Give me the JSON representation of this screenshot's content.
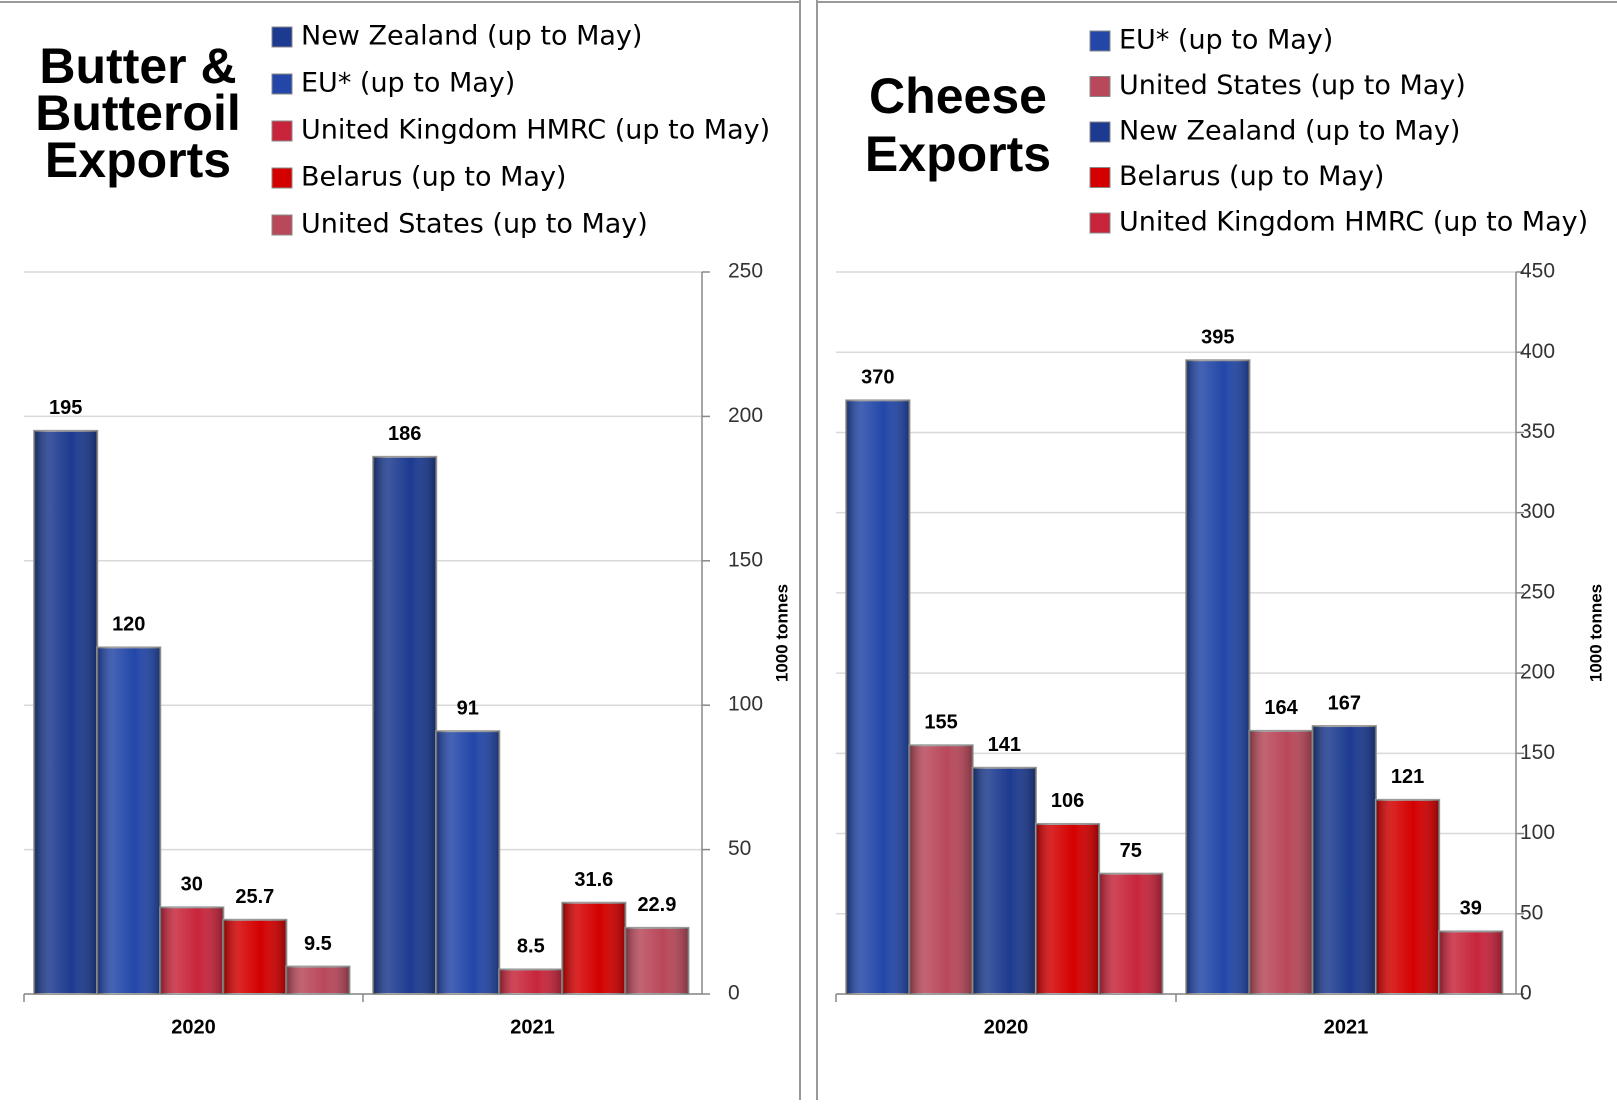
{
  "chart_data": [
    {
      "type": "bar",
      "title": [
        "Butter &",
        "Butteroil",
        "Exports"
      ],
      "y_label": "1000 tonnes",
      "categories": [
        "2020",
        "2021"
      ],
      "series": [
        {
          "name": "New Zealand (up to May)",
          "color": "#1c3a8f",
          "values": [
            195,
            186
          ]
        },
        {
          "name": "EU* (up to May)",
          "color": "#2347a8",
          "values": [
            120,
            91
          ]
        },
        {
          "name": "United Kingdom HMRC (up to May)",
          "color": "#c8253c",
          "values": [
            30,
            8.5
          ]
        },
        {
          "name": "Belarus (up to May)",
          "color": "#d40000",
          "values": [
            25.7,
            31.6
          ]
        },
        {
          "name": "United States (up to May)",
          "color": "#b8485a",
          "values": [
            9.5,
            22.9
          ]
        }
      ],
      "ylim": [
        0,
        250
      ],
      "yticks": [
        0,
        50,
        100,
        150,
        200,
        250
      ],
      "grid": true
    },
    {
      "type": "bar",
      "title": [
        "Cheese",
        "Exports"
      ],
      "y_label": "1000 tonnes",
      "categories": [
        "2020",
        "2021"
      ],
      "series": [
        {
          "name": "EU* (up to May)",
          "color": "#2347a8",
          "values": [
            370,
            395
          ]
        },
        {
          "name": "United States (up to May)",
          "color": "#b8485a",
          "values": [
            155,
            164
          ]
        },
        {
          "name": "New Zealand (up to May)",
          "color": "#1c3a8f",
          "values": [
            141,
            167
          ]
        },
        {
          "name": "Belarus (up to May)",
          "color": "#d40000",
          "values": [
            106,
            121
          ]
        },
        {
          "name": "United Kingdom HMRC (up to May)",
          "color": "#c8253c",
          "values": [
            75,
            39
          ]
        }
      ],
      "ylim": [
        0,
        450
      ],
      "yticks": [
        0,
        50,
        100,
        150,
        200,
        250,
        300,
        350,
        400,
        450
      ],
      "grid": true
    }
  ]
}
